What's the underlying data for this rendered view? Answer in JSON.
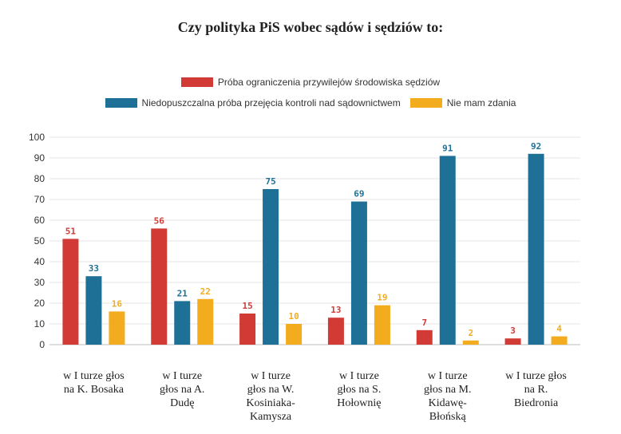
{
  "chart_data": {
    "type": "bar",
    "title": "Czy polityka PiS wobec sądów i sędziów to:",
    "categories": [
      [
        "w I turze głos",
        "na K. Bosaka"
      ],
      [
        "w I turze",
        "głos na A.",
        "Dudę"
      ],
      [
        "w I turze",
        "głos na W.",
        "Kosiniaka-",
        "Kamysza"
      ],
      [
        "w I turze",
        "głos na S.",
        "Hołownię"
      ],
      [
        "w I turze",
        "głos na M.",
        "Kidawę-",
        "Błońską"
      ],
      [
        "w I turze głos",
        "na R.",
        "Biedronia"
      ]
    ],
    "series": [
      {
        "name": "Próba ograniczenia przywilejów środowiska sędziów",
        "color": "#d13a35",
        "values": [
          51,
          56,
          15,
          13,
          7,
          3
        ]
      },
      {
        "name": "Niedopuszczalna próba przejęcia kontroli nad sądownictwem",
        "color": "#1f7096",
        "values": [
          33,
          21,
          75,
          69,
          91,
          92
        ]
      },
      {
        "name": "Nie mam zdania",
        "color": "#f2ac1e",
        "values": [
          16,
          22,
          10,
          19,
          2,
          4
        ]
      }
    ],
    "ylim": [
      0,
      100
    ],
    "yticks": [
      0,
      10,
      20,
      30,
      40,
      50,
      60,
      70,
      80,
      90,
      100
    ],
    "grid": true,
    "legend_position": "top"
  }
}
